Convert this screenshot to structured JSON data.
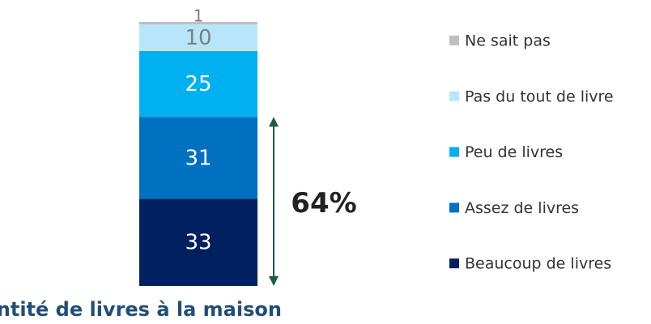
{
  "chart_data": {
    "type": "stacked_bar",
    "title": "Quantité de livres à la maison",
    "series": [
      {
        "name": "Beaucoup de livres",
        "color": "#002060",
        "label_color": "#ffffff",
        "values": [
          33
        ]
      },
      {
        "name": "Assez de livres",
        "color": "#0070c0",
        "label_color": "#ffffff",
        "values": [
          31
        ]
      },
      {
        "name": "Peu de livres",
        "color": "#00b0f0",
        "label_color": "#ffffff",
        "values": [
          25
        ]
      },
      {
        "name": "Pas du tout de livre",
        "color": "#b7e6fa",
        "label_color": "#7f7f7f",
        "values": [
          10
        ]
      },
      {
        "name": "Ne sait pas",
        "color": "#bfbfbf",
        "label_color": "#7f7f7f",
        "values": [
          1
        ]
      }
    ],
    "annotation": {
      "value": 64,
      "label": "64%"
    },
    "annotation_color": "#1d5b48",
    "legend": "right"
  }
}
